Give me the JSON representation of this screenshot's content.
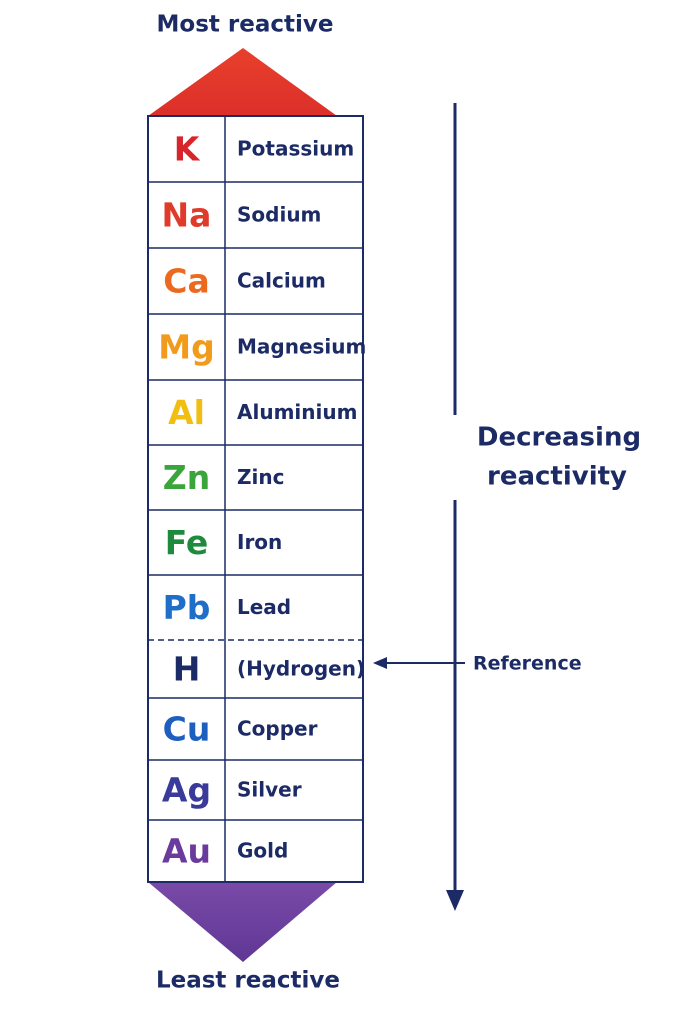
{
  "labels": {
    "top": "Most reactive",
    "bottom": "Least reactive",
    "side": [
      "Decreasing",
      "reactivity"
    ],
    "reference": "Reference"
  },
  "elements": [
    {
      "symbol": "K",
      "name": "Potassium",
      "color": "#d7262b"
    },
    {
      "symbol": "Na",
      "name": "Sodium",
      "color": "#df3a2a"
    },
    {
      "symbol": "Ca",
      "name": "Calcium",
      "color": "#ec6a20"
    },
    {
      "symbol": "Mg",
      "name": "Magnesium",
      "color": "#f29a1c"
    },
    {
      "symbol": "Al",
      "name": "Aluminium",
      "color": "#f2be12"
    },
    {
      "symbol": "Zn",
      "name": "Zinc",
      "color": "#3aa53a"
    },
    {
      "symbol": "Fe",
      "name": "Iron",
      "color": "#1e8a3c"
    },
    {
      "symbol": "Pb",
      "name": "Lead",
      "color": "#1f6fc9"
    },
    {
      "symbol": "H",
      "name": "(Hydrogen)",
      "color": "#1c2b66"
    },
    {
      "symbol": "Cu",
      "name": "Copper",
      "color": "#1d5fc0"
    },
    {
      "symbol": "Ag",
      "name": "Silver",
      "color": "#3a3a9a"
    },
    {
      "symbol": "Au",
      "name": "Gold",
      "color": "#6a3a9c"
    }
  ]
}
